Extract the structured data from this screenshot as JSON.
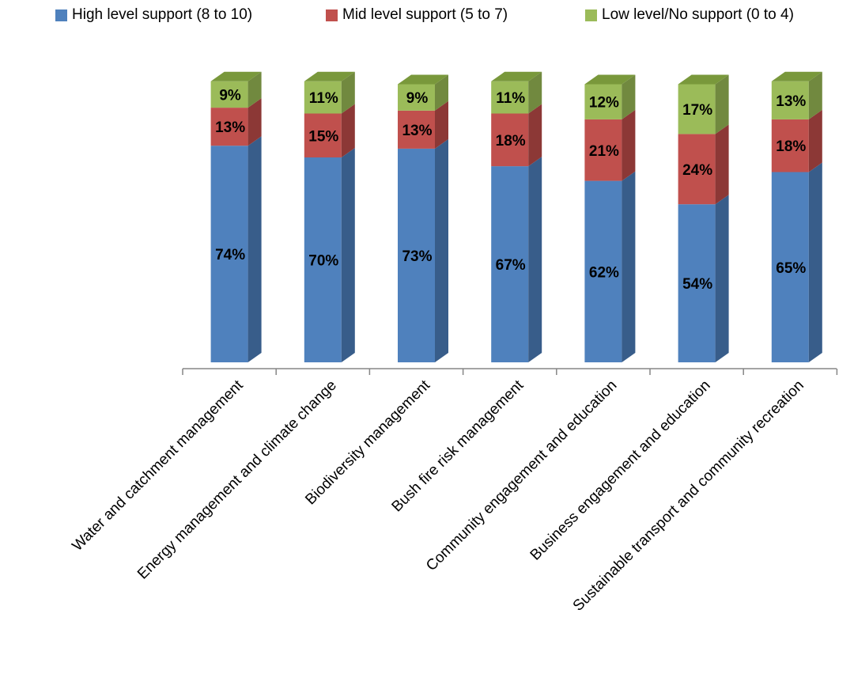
{
  "chart_data": {
    "type": "bar",
    "stacked": true,
    "style_3d": true,
    "title": "",
    "xlabel": "",
    "ylabel": "",
    "ylim": [
      0,
      100
    ],
    "grid": false,
    "legend_position": "top",
    "categories": [
      "Water and catchment management",
      "Energy management and climate change",
      "Biodiversity management",
      "Bush fire risk management",
      "Community engagement and education",
      "Business engagement and education",
      "Sustainable transport and community recreation"
    ],
    "series": [
      {
        "name": "High level support (8 to 10)",
        "color": "#4f81bd",
        "side_color": "#385d8a",
        "top_color": "#8eaad6",
        "values": [
          74,
          70,
          73,
          67,
          62,
          54,
          65
        ]
      },
      {
        "name": "Mid level support (5 to 7)",
        "color": "#c0504d",
        "side_color": "#8c3836",
        "top_color": "#d98b89",
        "values": [
          13,
          15,
          13,
          18,
          21,
          24,
          18
        ]
      },
      {
        "name": "Low level/No support (0 to 4)",
        "color": "#9bbb59",
        "side_color": "#71893f",
        "top_color": "#79983b",
        "values": [
          9,
          11,
          9,
          11,
          12,
          17,
          13
        ]
      }
    ],
    "data_labels": [
      [
        "74%",
        "70%",
        "73%",
        "67%",
        "62%",
        "54%",
        "65%"
      ],
      [
        "13%",
        "15%",
        "13%",
        "18%",
        "21%",
        "24%",
        "18%"
      ],
      [
        "9%",
        "11%",
        "9%",
        "11%",
        "12%",
        "17%",
        "13%"
      ]
    ]
  }
}
